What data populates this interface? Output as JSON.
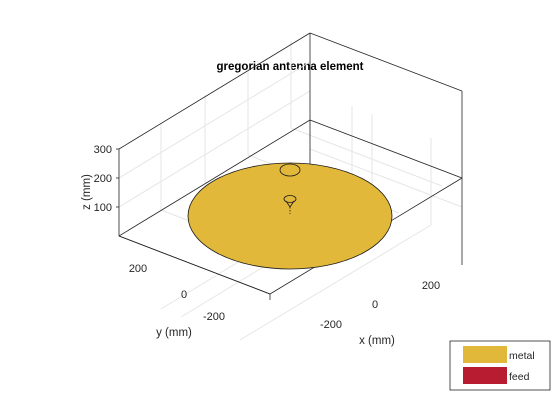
{
  "title": "gregorian antenna element",
  "axes": {
    "x": {
      "label": "x (mm)",
      "ticks": [
        "-200",
        "0",
        "200"
      ]
    },
    "y": {
      "label": "y (mm)",
      "ticks": [
        "200",
        "0",
        "-200"
      ]
    },
    "z": {
      "label": "z (mm)",
      "ticks": [
        "300",
        "200",
        "100"
      ]
    }
  },
  "legend": {
    "placement": "bottom-right",
    "items": [
      {
        "label": "metal",
        "color": "#e1b83a"
      },
      {
        "label": "feed",
        "color": "#b81c31"
      }
    ]
  },
  "colors": {
    "metal": "#e1b83a",
    "feed": "#b81c31",
    "grid": "#e6e6e6",
    "box": "#262626"
  }
}
